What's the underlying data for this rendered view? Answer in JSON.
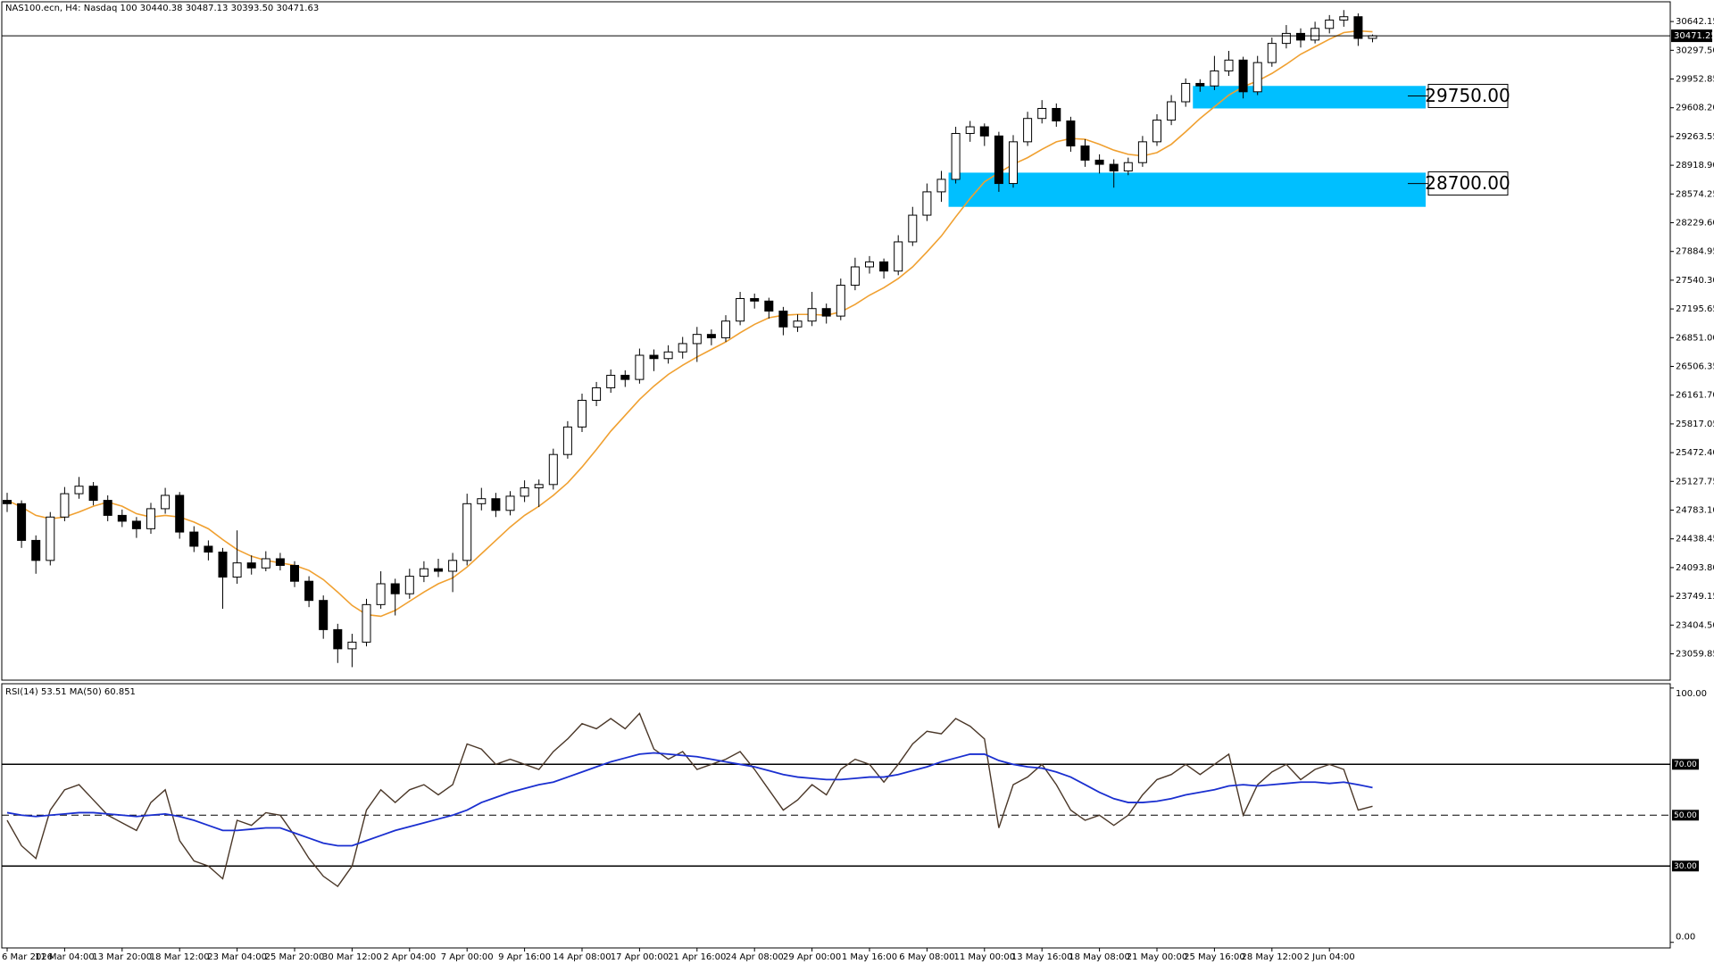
{
  "chart_data": [
    {
      "type": "candlestick",
      "title": "NAS100.ecn, H4:  Nasdaq 100  30440.38 30487.13 30393.50 30471.63",
      "categories": [
        "6 Mar 2026",
        null,
        null,
        null,
        "11 Mar 04:00",
        null,
        null,
        null,
        "13 Mar 20:00",
        null,
        null,
        null,
        "18 Mar 12:00",
        null,
        null,
        null,
        "23 Mar 04:00",
        null,
        null,
        null,
        "25 Mar 20:00",
        null,
        null,
        null,
        "30 Mar 12:00",
        null,
        null,
        null,
        "2 Apr 04:00",
        null,
        null,
        null,
        "7 Apr 00:00",
        null,
        null,
        null,
        "9 Apr 16:00",
        null,
        null,
        null,
        "14 Apr 08:00",
        null,
        null,
        null,
        "17 Apr 00:00",
        null,
        null,
        null,
        "21 Apr 16:00",
        null,
        null,
        null,
        "24 Apr 08:00",
        null,
        null,
        null,
        "29 Apr 00:00",
        null,
        null,
        null,
        "1 May 16:00",
        null,
        null,
        null,
        "6 May 08:00",
        null,
        null,
        null,
        "11 May 00:00",
        null,
        null,
        null,
        "13 May 16:00",
        null,
        null,
        null,
        "18 May 08:00",
        null,
        null,
        null,
        "21 May 00:00",
        null,
        null,
        null,
        "25 May 16:00",
        null,
        null,
        null,
        "28 May 12:00",
        null,
        null,
        null,
        "2 Jun 04:00",
        null,
        null,
        null
      ],
      "open": [
        24900,
        24860,
        24420,
        24180,
        24700,
        24980,
        25070,
        24900,
        24720,
        24650,
        24560,
        24800,
        24960,
        24520,
        24350,
        24280,
        23980,
        24150,
        24090,
        24200,
        24120,
        23930,
        23700,
        23350,
        23120,
        23200,
        23650,
        23900,
        23780,
        23990,
        24080,
        24050,
        24180,
        24860,
        24920,
        24780,
        24950,
        25050,
        25090,
        25450,
        25780,
        26100,
        26250,
        26400,
        26350,
        26640,
        26600,
        26680,
        26780,
        26890,
        26850,
        27050,
        27320,
        27290,
        27170,
        26980,
        27050,
        27200,
        27110,
        27480,
        27700,
        27760,
        27650,
        28000,
        28320,
        28600,
        28750,
        29300,
        29380,
        29270,
        28700,
        29200,
        29480,
        29600,
        29450,
        29150,
        28980,
        28930,
        28850,
        28950,
        29200,
        29460,
        29680,
        29900,
        29870,
        30050,
        30180,
        29800,
        30150,
        30380,
        30500,
        30420,
        30560,
        30660,
        30700,
        30440.38
      ],
      "high": [
        24990,
        24900,
        24480,
        24760,
        25060,
        25180,
        25120,
        24960,
        24790,
        24700,
        24870,
        25050,
        25000,
        24590,
        24420,
        24330,
        24540,
        24240,
        24290,
        24270,
        24170,
        23990,
        23760,
        23420,
        23300,
        23720,
        24050,
        23960,
        24080,
        24170,
        24200,
        24270,
        24980,
        25050,
        24990,
        25010,
        25140,
        25150,
        25520,
        25850,
        26180,
        26320,
        26470,
        26460,
        26720,
        26710,
        26760,
        26860,
        26980,
        26950,
        27120,
        27400,
        27380,
        27330,
        27220,
        27130,
        27400,
        27260,
        27560,
        27810,
        27830,
        27800,
        28080,
        28420,
        28700,
        28850,
        29380,
        29450,
        29420,
        29320,
        29280,
        29560,
        29700,
        29660,
        29500,
        29230,
        29050,
        28990,
        29010,
        29270,
        29530,
        29760,
        29960,
        29950,
        30230,
        30290,
        30220,
        30230,
        30450,
        30600,
        30560,
        30640,
        30720,
        30780,
        30740,
        30487.13
      ],
      "low": [
        24760,
        24330,
        24020,
        24120,
        24650,
        24920,
        24840,
        24650,
        24580,
        24450,
        24500,
        24740,
        24440,
        24280,
        24180,
        23600,
        23900,
        24010,
        24050,
        24060,
        23860,
        23620,
        23240,
        22950,
        22900,
        23150,
        23600,
        23520,
        23720,
        23920,
        23980,
        23800,
        24120,
        24780,
        24700,
        24720,
        24880,
        24820,
        25030,
        25400,
        25720,
        26030,
        26190,
        26260,
        26300,
        26450,
        26540,
        26600,
        26560,
        26760,
        26800,
        27000,
        27200,
        27080,
        26880,
        26920,
        26990,
        27020,
        27060,
        27420,
        27620,
        27560,
        27600,
        27950,
        28250,
        28480,
        28700,
        29200,
        29150,
        28600,
        28650,
        29150,
        29420,
        29380,
        29080,
        28900,
        28820,
        28650,
        28800,
        28900,
        29150,
        29400,
        29620,
        29800,
        29820,
        29990,
        29720,
        29760,
        30100,
        30320,
        30330,
        30380,
        30500,
        30580,
        30350,
        30393.5
      ],
      "close": [
        24860,
        24420,
        24180,
        24700,
        24980,
        25070,
        24900,
        24720,
        24650,
        24560,
        24800,
        24960,
        24520,
        24350,
        24280,
        23980,
        24150,
        24090,
        24200,
        24120,
        23930,
        23700,
        23350,
        23120,
        23200,
        23650,
        23900,
        23780,
        23990,
        24080,
        24050,
        24180,
        24860,
        24920,
        24780,
        24950,
        25050,
        25090,
        25450,
        25780,
        26100,
        26250,
        26400,
        26350,
        26640,
        26600,
        26680,
        26780,
        26890,
        26850,
        27050,
        27320,
        27290,
        27170,
        26980,
        27050,
        27200,
        27110,
        27480,
        27700,
        27760,
        27650,
        28000,
        28320,
        28600,
        28750,
        29300,
        29380,
        29270,
        28700,
        29200,
        29480,
        29600,
        29450,
        29150,
        28980,
        28930,
        28850,
        28950,
        29200,
        29460,
        29680,
        29900,
        29870,
        30050,
        30180,
        29800,
        30150,
        30380,
        30500,
        30420,
        30560,
        30660,
        30700,
        30440,
        30471.63
      ],
      "up_color": "#ffffff",
      "down_color": "#000000",
      "ma": {
        "color": "#f0a030",
        "values": [
          24900,
          24820,
          24720,
          24680,
          24700,
          24760,
          24830,
          24880,
          24830,
          24740,
          24700,
          24720,
          24700,
          24640,
          24560,
          24430,
          24310,
          24230,
          24180,
          24150,
          24120,
          24060,
          23950,
          23800,
          23640,
          23530,
          23510,
          23580,
          23690,
          23800,
          23900,
          23970,
          24100,
          24260,
          24420,
          24580,
          24720,
          24830,
          24960,
          25110,
          25300,
          25510,
          25730,
          25920,
          26110,
          26270,
          26410,
          26520,
          26620,
          26710,
          26800,
          26910,
          27010,
          27090,
          27120,
          27130,
          27130,
          27120,
          27160,
          27250,
          27360,
          27450,
          27560,
          27700,
          27880,
          28070,
          28300,
          28520,
          28720,
          28830,
          28930,
          29010,
          29110,
          29200,
          29240,
          29230,
          29170,
          29100,
          29050,
          29030,
          29070,
          29170,
          29320,
          29480,
          29620,
          29760,
          29860,
          29930,
          30020,
          30130,
          30250,
          30340,
          30430,
          30510,
          30530,
          30520
        ]
      },
      "current_price": 30471.25,
      "zones": [
        {
          "value": 29750,
          "label": "29750.00",
          "top": 29870,
          "bottom": 29600,
          "color": "#00bfff"
        },
        {
          "value": 28700,
          "label": "28700.00",
          "top": 28830,
          "bottom": 28420,
          "color": "#00bfff"
        }
      ],
      "ylim": [
        22744,
        30879
      ],
      "yticks": [
        30642.15,
        {
          "value": 30297.5,
          "label": "30297.50"
        },
        29952.85,
        {
          "value": 29608.2,
          "label": "29608.20"
        },
        29263.55,
        {
          "value": 28918.9,
          "label": "28918.90"
        },
        28574.25,
        {
          "value": 28229.6,
          "label": "28229.60"
        },
        27884.95,
        {
          "value": 27540.3,
          "label": "27540.30"
        },
        27195.65,
        {
          "value": 26851,
          "label": "26851.00"
        },
        26506.35,
        {
          "value": 26161.7,
          "label": "26161.70"
        },
        25817.05,
        {
          "value": 25472.4,
          "label": "25472.40"
        },
        25127.75,
        {
          "value": 24783.1,
          "label": "24783.10"
        },
        24438.45,
        {
          "value": 24093.8,
          "label": "24093.80"
        },
        23749.15,
        {
          "value": 23404.5,
          "label": "23404.50"
        },
        23059.85
      ]
    },
    {
      "type": "line",
      "title": "RSI(14) 53.51 MA(50) 60.851",
      "series": [
        {
          "color": "#4a3728",
          "values": [
            48,
            38,
            33,
            52,
            60,
            62,
            56,
            50,
            47,
            44,
            55,
            60,
            40,
            32,
            30,
            25,
            48,
            46,
            51,
            50,
            42,
            33,
            26,
            22,
            30,
            52,
            60,
            55,
            60,
            62,
            58,
            62,
            78,
            76,
            70,
            72,
            70,
            68,
            75,
            80,
            86,
            84,
            88,
            84,
            90,
            76,
            72,
            75,
            68,
            70,
            72,
            75,
            68,
            60,
            52,
            56,
            62,
            58,
            68,
            72,
            70,
            63,
            70,
            78,
            83,
            82,
            88,
            85,
            80,
            45,
            62,
            65,
            70,
            62,
            52,
            48,
            50,
            46,
            50,
            58,
            64,
            66,
            70,
            66,
            70,
            74,
            50,
            62,
            67,
            70,
            64,
            68,
            70,
            68,
            52,
            53.51
          ]
        },
        {
          "color": "#1a2fd0",
          "values": [
            51,
            50,
            49.5,
            50,
            50.5,
            51,
            51,
            50.5,
            50,
            49.5,
            50,
            50.5,
            49.5,
            48,
            46,
            44,
            44,
            44.5,
            45,
            45,
            43,
            41,
            39,
            38,
            38,
            40,
            42,
            44,
            45.5,
            47,
            48.5,
            50,
            52,
            55,
            57,
            59,
            60.5,
            62,
            63,
            65,
            67,
            69,
            71,
            72.5,
            74,
            74.5,
            74,
            73.5,
            73,
            72,
            71,
            70,
            69,
            67.5,
            66,
            65,
            64.5,
            64,
            64,
            64.5,
            65,
            65,
            66,
            67.5,
            69,
            71,
            72.5,
            74,
            74,
            71.5,
            70,
            69,
            68.5,
            67,
            65,
            62,
            59,
            56.5,
            55,
            55,
            55.5,
            56.5,
            58,
            59,
            60,
            61.5,
            62,
            61.5,
            62,
            62.5,
            63,
            63,
            62.5,
            63,
            62,
            60.851
          ]
        }
      ],
      "ylim": [
        -2.2,
        101.7
      ],
      "yticks": [
        {
          "value": 100,
          "label": "100.00"
        },
        {
          "value": 70,
          "label": "70.00"
        },
        {
          "value": 50,
          "label": "50.00"
        },
        {
          "value": 30,
          "label": "30.00"
        },
        {
          "value": 0,
          "label": "0.00"
        }
      ]
    }
  ]
}
